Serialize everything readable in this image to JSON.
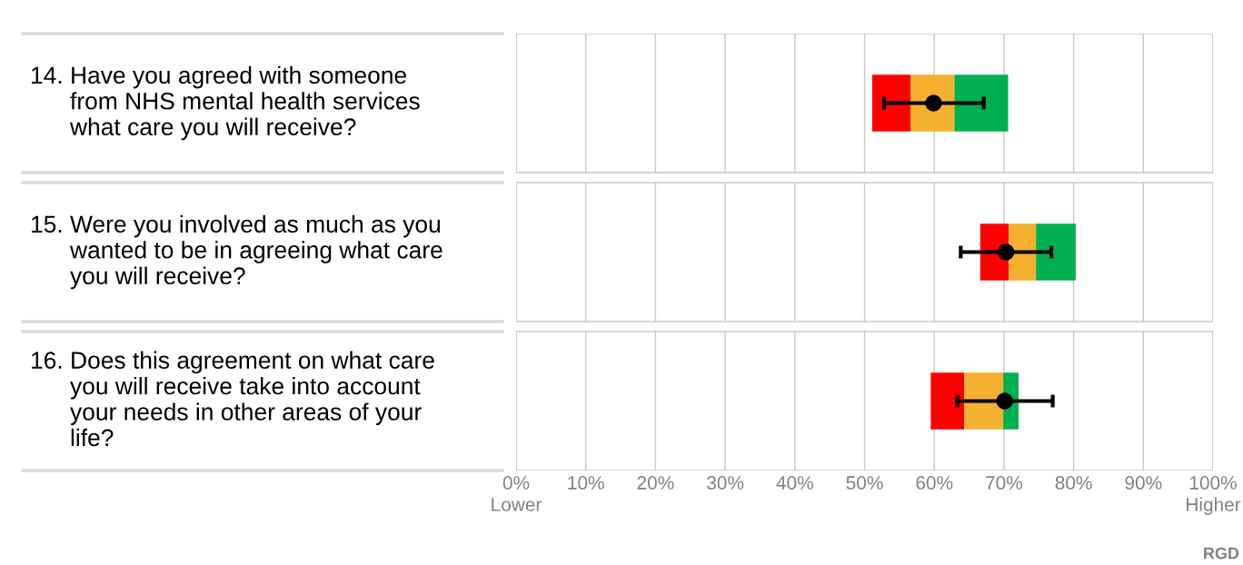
{
  "chart_data": {
    "type": "bar",
    "orientation": "horizontal",
    "categories": [
      "14. Have you agreed with someone\nfrom NHS mental health services\nwhat care you will receive?",
      "15. Were you involved as much as you\nwanted to be in agreeing what care\nyou will receive?",
      "16. Does this agreement on what care\nyou will receive take into account\nyour needs in other areas of your\nlife?"
    ],
    "series": [
      {
        "type": "bar",
        "color": "#ff0000",
        "base": [
          51.1,
          66.6,
          59.5
        ],
        "values": [
          5.5,
          4.1,
          4.8
        ]
      },
      {
        "type": "bar",
        "color": "#f5b02f",
        "base": [
          56.6,
          70.7,
          64.3
        ],
        "values": [
          6.3,
          3.9,
          5.6
        ]
      },
      {
        "type": "bar",
        "color": "#00b050",
        "base": [
          62.9,
          74.6,
          69.9
        ],
        "values": [
          7.7,
          5.7,
          2.2
        ]
      },
      {
        "type": "scatter",
        "color": "#000000",
        "values": [
          59.9,
          70.3,
          70.1
        ],
        "errors": [
          [
            52.8,
            67.1
          ],
          [
            63.8,
            76.8
          ],
          [
            63.3,
            77.0
          ]
        ]
      }
    ],
    "xlim": [
      0,
      100
    ],
    "xticks": [
      {
        "value": 0,
        "label": "0%\nLower"
      },
      {
        "value": 10,
        "label": "10%"
      },
      {
        "value": 20,
        "label": "20%"
      },
      {
        "value": 30,
        "label": "30%"
      },
      {
        "value": 40,
        "label": "40%"
      },
      {
        "value": 50,
        "label": "50%"
      },
      {
        "value": 60,
        "label": "60%"
      },
      {
        "value": 70,
        "label": "70%"
      },
      {
        "value": 80,
        "label": "80%"
      },
      {
        "value": 90,
        "label": "90%"
      },
      {
        "value": 100,
        "label": "100%\nHigher"
      }
    ],
    "grid": "x",
    "marker": "circle",
    "annotations": [
      "RGD"
    ]
  }
}
